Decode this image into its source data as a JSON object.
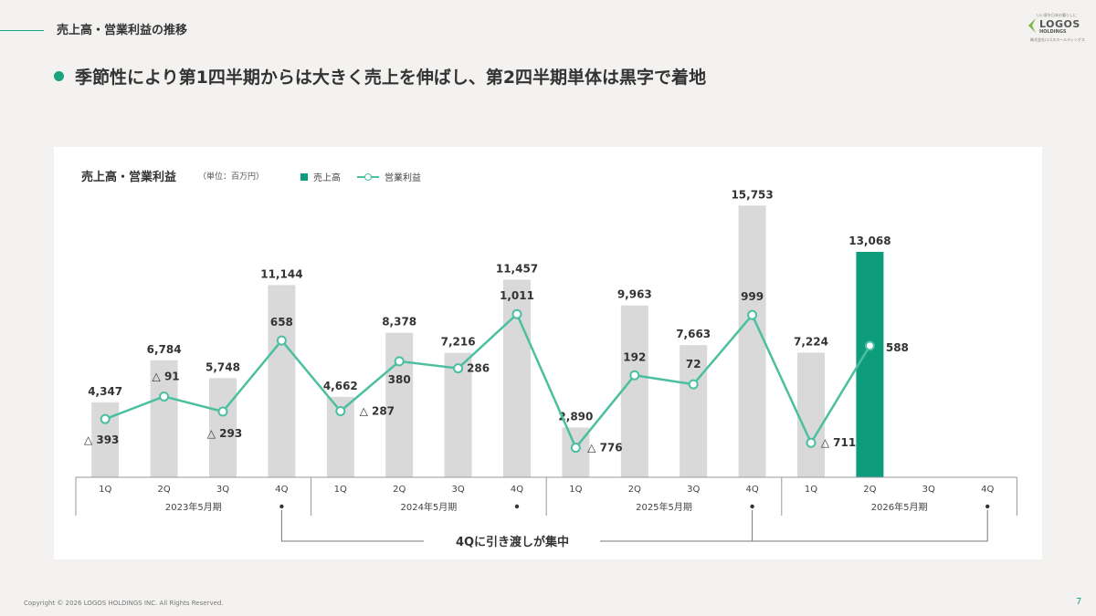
{
  "header": {
    "title": "売上高・営業利益の推移"
  },
  "logo": {
    "tagline": "いい家を日本の暮らしに",
    "name": "LOGOS",
    "sub": "HOLDINGS",
    "jp": "株式会社ロゴスホールディングス"
  },
  "headline": "季節性により第1四半期からは大きく売上を伸ばし、第2四半期単体は黒字で着地",
  "chart_title": "売上高・営業利益",
  "chart_unit": "（単位：百万円）",
  "legend": {
    "bar": "売上高",
    "line": "営業利益"
  },
  "colors": {
    "accent": "#0d9d7c",
    "bar": "#d9d9d9",
    "line": "#4cbfa0",
    "background": "#f3f2f0"
  },
  "annotation": "4Qに引き渡しが集中",
  "footer": "Copyright © 2026 LOGOS HOLDINGS INC. All Rights Reserved.",
  "page_number": "7",
  "chart_data": {
    "type": "bar",
    "categories": [
      "1Q",
      "2Q",
      "3Q",
      "4Q",
      "1Q",
      "2Q",
      "3Q",
      "4Q",
      "1Q",
      "2Q",
      "3Q",
      "4Q",
      "1Q",
      "2Q",
      "3Q",
      "4Q"
    ],
    "groups": [
      "2023年5月期",
      "2024年5月期",
      "2025年5月期",
      "2026年5月期"
    ],
    "series": [
      {
        "name": "売上高",
        "type": "bar",
        "values": [
          4347,
          6784,
          5748,
          11144,
          4662,
          8378,
          7216,
          11457,
          2890,
          9963,
          7663,
          15753,
          7224,
          13068,
          null,
          null
        ],
        "labels": [
          "4,347",
          "6,784",
          "5,748",
          "11,144",
          "4,662",
          "8,378",
          "7,216",
          "11,457",
          "2,890",
          "9,963",
          "7,663",
          "15,753",
          "7,224",
          "13,068",
          "",
          ""
        ],
        "highlight_index": 13
      },
      {
        "name": "営業利益",
        "type": "line",
        "values": [
          -393,
          -91,
          -293,
          658,
          -287,
          380,
          286,
          1011,
          -776,
          192,
          72,
          999,
          -711,
          588,
          null,
          null
        ],
        "labels": [
          "△ 393",
          "△ 91",
          "△ 293",
          "658",
          "△ 287",
          "380",
          "286",
          "1,011",
          "△ 776",
          "192",
          "72",
          "999",
          "△ 711",
          "588",
          "",
          ""
        ]
      }
    ]
  }
}
